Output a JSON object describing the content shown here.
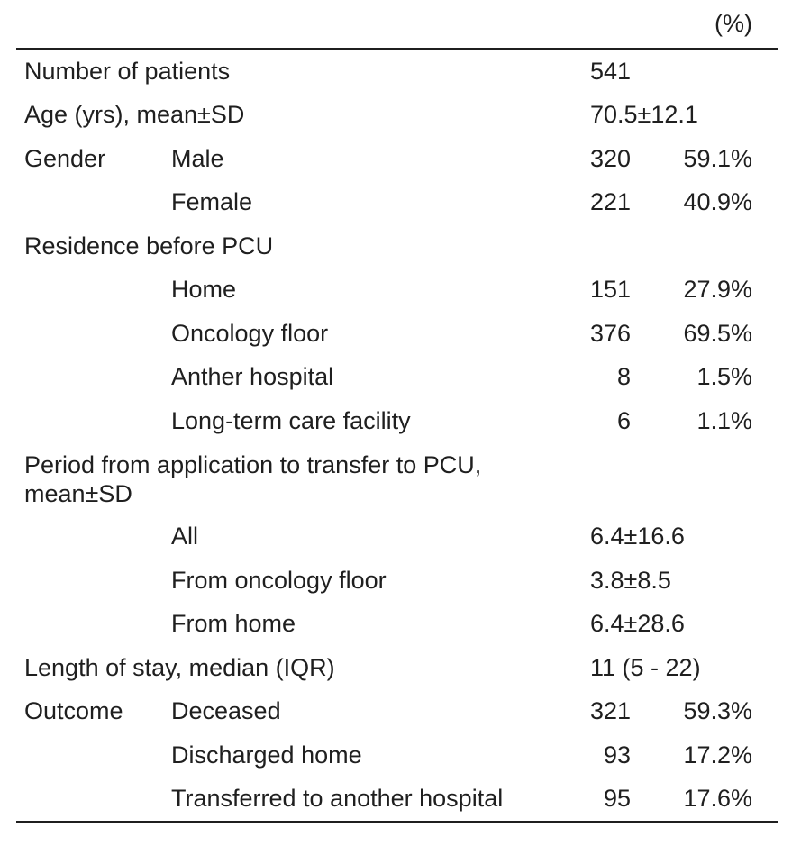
{
  "table": {
    "header": {
      "percent_label": "(%)"
    },
    "rows": [
      {
        "label": "Number of patients",
        "value": "541"
      },
      {
        "label": "Age (yrs), mean±SD",
        "value": "70.5±12.1"
      },
      {
        "category": "Gender",
        "label": "Male",
        "n": "320",
        "pct": "59.1%"
      },
      {
        "label": "Female",
        "n": "221",
        "pct": "40.9%"
      },
      {
        "label": "Residence before PCU"
      },
      {
        "label": "Home",
        "n": "151",
        "pct": "27.9%"
      },
      {
        "label": "Oncology floor",
        "n": "376",
        "pct": "69.5%"
      },
      {
        "label": "Anther hospital",
        "n": "8",
        "pct": "1.5%"
      },
      {
        "label": "Long-term care facility",
        "n": "6",
        "pct": "1.1%"
      },
      {
        "label": "Period from application to transfer to PCU, mean±SD"
      },
      {
        "label": "All",
        "value": "6.4±16.6"
      },
      {
        "label": "From oncology floor",
        "value": "3.8±8.5"
      },
      {
        "label": "From home",
        "value": "6.4±28.6"
      },
      {
        "label": "Length of stay, median (IQR)",
        "value": "11 (5 - 22)"
      },
      {
        "category": "Outcome",
        "label": "Deceased",
        "n": "321",
        "pct": "59.3%"
      },
      {
        "label": "Discharged home",
        "n": "93",
        "pct": "17.2%"
      },
      {
        "label": "Transferred to another hospital",
        "n": "95",
        "pct": "17.6%"
      }
    ]
  },
  "colors": {
    "text": "#1f1f1f",
    "rule": "#1f1f1f",
    "background": "#ffffff"
  }
}
